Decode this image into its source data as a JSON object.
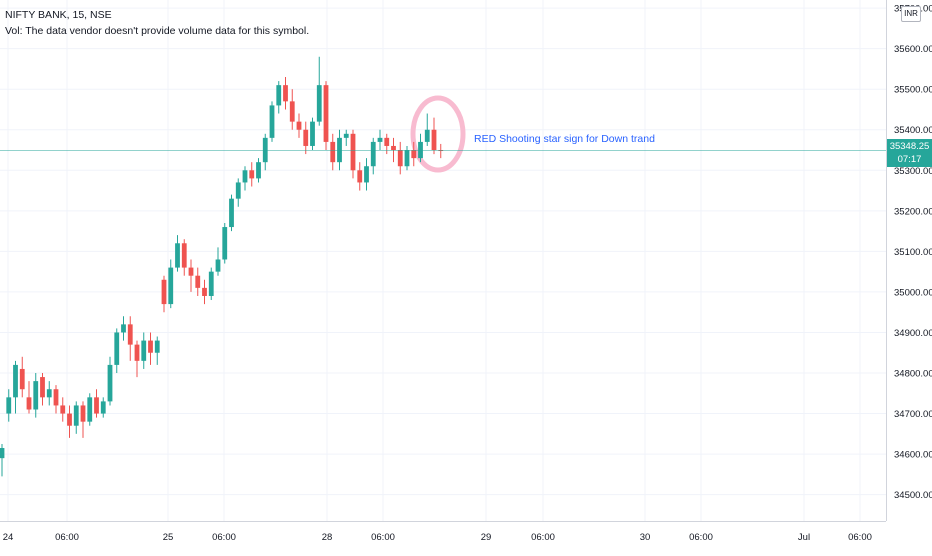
{
  "legend": {
    "symbol": "NIFTY BANK, 15, NSE",
    "volume_note": "Vol: The data vendor doesn't provide volume data for this symbol."
  },
  "currency": "INR",
  "annotation": "RED Shooting star sign for Down trand",
  "last_price": {
    "value": "35348.25",
    "countdown": "07:17",
    "color": "#26a69a"
  },
  "colors": {
    "up": "#26a69a",
    "down": "#ef5350",
    "grid": "#f0f3fa",
    "highlight": "#f8bbd0"
  },
  "chart_data": {
    "type": "candlestick",
    "y_axis": {
      "ticks": [
        "34500.00",
        "34600.00",
        "34700.00",
        "34800.00",
        "34900.00",
        "35000.00",
        "35100.00",
        "35200.00",
        "35300.00",
        "35400.00",
        "35500.00",
        "35600.00",
        "35700.00"
      ],
      "range": [
        34435,
        35720
      ]
    },
    "x_axis": {
      "ticks": [
        "24",
        "06:00",
        "25",
        "06:00",
        "28",
        "06:00",
        "29",
        "06:00",
        "30",
        "06:00",
        "Jul",
        "06:00"
      ]
    },
    "last_price_line": 35348.25,
    "candles": [
      [
        34590,
        34615,
        34545,
        34625
      ],
      [
        34700,
        34740,
        34680,
        34760
      ],
      [
        34740,
        34820,
        34700,
        34830
      ],
      [
        34810,
        34760,
        34740,
        34840
      ],
      [
        34740,
        34710,
        34700,
        34780
      ],
      [
        34710,
        34780,
        34690,
        34800
      ],
      [
        34790,
        34740,
        34720,
        34800
      ],
      [
        34740,
        34760,
        34720,
        34780
      ],
      [
        34760,
        34720,
        34700,
        34770
      ],
      [
        34720,
        34700,
        34680,
        34740
      ],
      [
        34700,
        34670,
        34640,
        34720
      ],
      [
        34670,
        34720,
        34650,
        34730
      ],
      [
        34720,
        34680,
        34640,
        34730
      ],
      [
        34680,
        34740,
        34670,
        34750
      ],
      [
        34740,
        34700,
        34690,
        34760
      ],
      [
        34700,
        34730,
        34690,
        34740
      ],
      [
        34730,
        34820,
        34720,
        34840
      ],
      [
        34820,
        34900,
        34800,
        34910
      ],
      [
        34900,
        34920,
        34880,
        34940
      ],
      [
        34920,
        34870,
        34830,
        34940
      ],
      [
        34870,
        34830,
        34790,
        34880
      ],
      [
        34830,
        34880,
        34810,
        34900
      ],
      [
        34880,
        34850,
        34820,
        34900
      ],
      [
        34850,
        34880,
        34820,
        34890
      ],
      [
        35030,
        34970,
        34950,
        35040
      ],
      [
        34970,
        35060,
        34960,
        35080
      ],
      [
        35060,
        35120,
        35050,
        35140
      ],
      [
        35120,
        35060,
        35040,
        35130
      ],
      [
        35060,
        35040,
        35000,
        35080
      ],
      [
        35040,
        35010,
        34990,
        35060
      ],
      [
        35010,
        34990,
        34970,
        35030
      ],
      [
        34990,
        35050,
        34980,
        35060
      ],
      [
        35050,
        35080,
        35040,
        35110
      ],
      [
        35080,
        35160,
        35070,
        35170
      ],
      [
        35160,
        35230,
        35150,
        35240
      ],
      [
        35230,
        35270,
        35210,
        35280
      ],
      [
        35270,
        35300,
        35250,
        35310
      ],
      [
        35300,
        35280,
        35260,
        35320
      ],
      [
        35280,
        35320,
        35270,
        35330
      ],
      [
        35320,
        35380,
        35300,
        35390
      ],
      [
        35380,
        35460,
        35370,
        35470
      ],
      [
        35460,
        35510,
        35440,
        35520
      ],
      [
        35510,
        35470,
        35450,
        35530
      ],
      [
        35470,
        35420,
        35400,
        35500
      ],
      [
        35420,
        35400,
        35380,
        35440
      ],
      [
        35400,
        35360,
        35340,
        35420
      ],
      [
        35360,
        35420,
        35350,
        35430
      ],
      [
        35420,
        35510,
        35410,
        35580
      ],
      [
        35510,
        35370,
        35350,
        35520
      ],
      [
        35370,
        35320,
        35300,
        35390
      ],
      [
        35320,
        35380,
        35300,
        35400
      ],
      [
        35380,
        35390,
        35360,
        35400
      ],
      [
        35390,
        35300,
        35280,
        35400
      ],
      [
        35300,
        35270,
        35250,
        35320
      ],
      [
        35270,
        35310,
        35250,
        35330
      ],
      [
        35310,
        35370,
        35290,
        35380
      ],
      [
        35370,
        35380,
        35350,
        35400
      ],
      [
        35380,
        35360,
        35340,
        35390
      ],
      [
        35360,
        35350,
        35320,
        35380
      ],
      [
        35350,
        35310,
        35290,
        35370
      ],
      [
        35310,
        35350,
        35300,
        35360
      ],
      [
        35350,
        35330,
        35310,
        35370
      ],
      [
        35330,
        35370,
        35320,
        35390
      ],
      [
        35370,
        35400,
        35360,
        35440
      ],
      [
        35400,
        35350,
        35340,
        35430
      ],
      [
        35350,
        35348,
        35330,
        35365
      ]
    ]
  }
}
